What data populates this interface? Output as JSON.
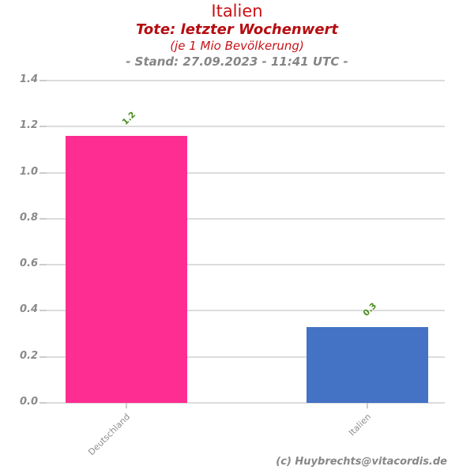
{
  "header": {
    "title": "Italien",
    "subtitle": "Tote: letzter Wochenwert",
    "unit_note": "(je 1 Mio Bevölkerung)",
    "stand": "- Stand: 27.09.2023 - 11:41 UTC -"
  },
  "chart_data": {
    "type": "bar",
    "title": "Italien",
    "subtitle": "Tote: letzter Wochenwert (je 1 Mio Bevölkerung)",
    "categories": [
      "Deutschland",
      "Italien"
    ],
    "values": [
      1.16,
      0.33
    ],
    "bar_labels": [
      "1.2",
      "0.3"
    ],
    "bar_colors": [
      "#fd2d92",
      "#4472c4"
    ],
    "xlabel": "",
    "ylabel": "",
    "ylim": [
      0,
      1.4
    ],
    "yticks": [
      0.0,
      0.2,
      0.4,
      0.6,
      0.8,
      1.0,
      1.2,
      1.4
    ],
    "ytick_labels": [
      "0.0",
      "0.2",
      "0.4",
      "0.6",
      "0.8",
      "1.0",
      "1.2",
      "1.4"
    ],
    "grid": "horizontal",
    "legend": "none",
    "value_label_color": "#4a8c1f"
  },
  "footer": {
    "credit": "(c) Huybrechts@vitacordis.de"
  },
  "colors": {
    "grid": "#dcdcdc",
    "tick": "#cccccc",
    "axis_text": "#8a8a8a",
    "title_red": "#c91115",
    "subtitle_red": "#b50d10",
    "stand_gray": "#858585"
  }
}
